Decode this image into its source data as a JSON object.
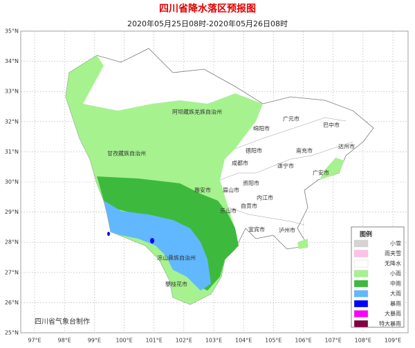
{
  "header": {
    "title": "四川省降水落区预报图",
    "subtitle": "2020年05月25日08时-2020年05月26日08时"
  },
  "axes": {
    "lat_labels": [
      "35°N",
      "34°N",
      "33°N",
      "32°N",
      "31°N",
      "30°N",
      "29°N",
      "28°N",
      "27°N",
      "26°N",
      "25°N"
    ],
    "lon_labels": [
      "97°E",
      "98°E",
      "99°E",
      "100°E",
      "101°E",
      "102°E",
      "103°E",
      "104°E",
      "105°E",
      "106°E",
      "107°E",
      "108°E",
      "109°E"
    ]
  },
  "regions": [
    "阿坝藏族羌族自治州",
    "甘孜藏族自治州",
    "凉山彝族自治州",
    "攀枝花市",
    "雅安市",
    "眉山市",
    "乐山市",
    "成都市",
    "德阳市",
    "绵阳市",
    "广元市",
    "巴中市",
    "达州市",
    "南充市",
    "遂宁市",
    "广安市",
    "资阳市",
    "内江市",
    "自贡市",
    "宜宾市",
    "泸州市"
  ],
  "legend": {
    "title": "图例",
    "items": [
      {
        "label": "小雪",
        "color": "#d4d4d4"
      },
      {
        "label": "雨夹雪",
        "color": "#ffc0e8"
      },
      {
        "label": "无降水",
        "color": "#ffffff"
      },
      {
        "label": "小雨",
        "color": "#a6f28f"
      },
      {
        "label": "中雨",
        "color": "#3dba3d"
      },
      {
        "label": "大雨",
        "color": "#61b8ff"
      },
      {
        "label": "暴雨",
        "color": "#0000fe"
      },
      {
        "label": "大暴雨",
        "color": "#fa00fa"
      },
      {
        "label": "特大暴雨",
        "color": "#800040"
      }
    ]
  },
  "footer": "四川省气象台制作"
}
